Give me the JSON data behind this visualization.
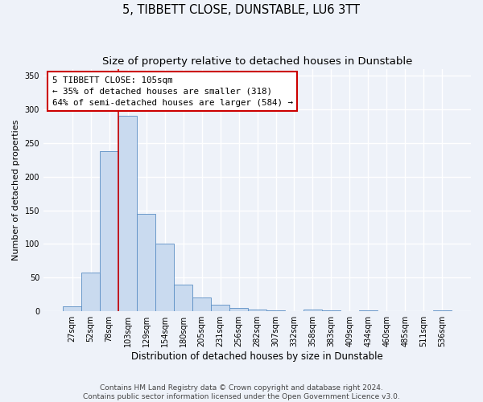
{
  "title": "5, TIBBETT CLOSE, DUNSTABLE, LU6 3TT",
  "subtitle": "Size of property relative to detached houses in Dunstable",
  "xlabel": "Distribution of detached houses by size in Dunstable",
  "ylabel": "Number of detached properties",
  "bar_labels": [
    "27sqm",
    "52sqm",
    "78sqm",
    "103sqm",
    "129sqm",
    "154sqm",
    "180sqm",
    "205sqm",
    "231sqm",
    "256sqm",
    "282sqm",
    "307sqm",
    "332sqm",
    "358sqm",
    "383sqm",
    "409sqm",
    "434sqm",
    "460sqm",
    "485sqm",
    "511sqm",
    "536sqm"
  ],
  "bar_heights": [
    8,
    57,
    238,
    290,
    145,
    100,
    40,
    20,
    10,
    5,
    3,
    2,
    0,
    3,
    2,
    0,
    2,
    0,
    0,
    0,
    2
  ],
  "bar_color": "#c9daef",
  "bar_edge_color": "#5b8ec4",
  "annotation_text": "5 TIBBETT CLOSE: 105sqm\n← 35% of detached houses are smaller (318)\n64% of semi-detached houses are larger (584) →",
  "annotation_box_color": "#ffffff",
  "annotation_box_edge": "#cc0000",
  "vline_color": "#cc0000",
  "ylim": [
    0,
    360
  ],
  "yticks": [
    0,
    50,
    100,
    150,
    200,
    250,
    300,
    350
  ],
  "footer_line1": "Contains HM Land Registry data © Crown copyright and database right 2024.",
  "footer_line2": "Contains public sector information licensed under the Open Government Licence v3.0.",
  "bg_color": "#eef2f9",
  "plot_bg_color": "#eef2f9",
  "grid_color": "#ffffff",
  "title_fontsize": 10.5,
  "subtitle_fontsize": 9.5,
  "footer_fontsize": 6.5,
  "ylabel_fontsize": 8,
  "xlabel_fontsize": 8.5
}
